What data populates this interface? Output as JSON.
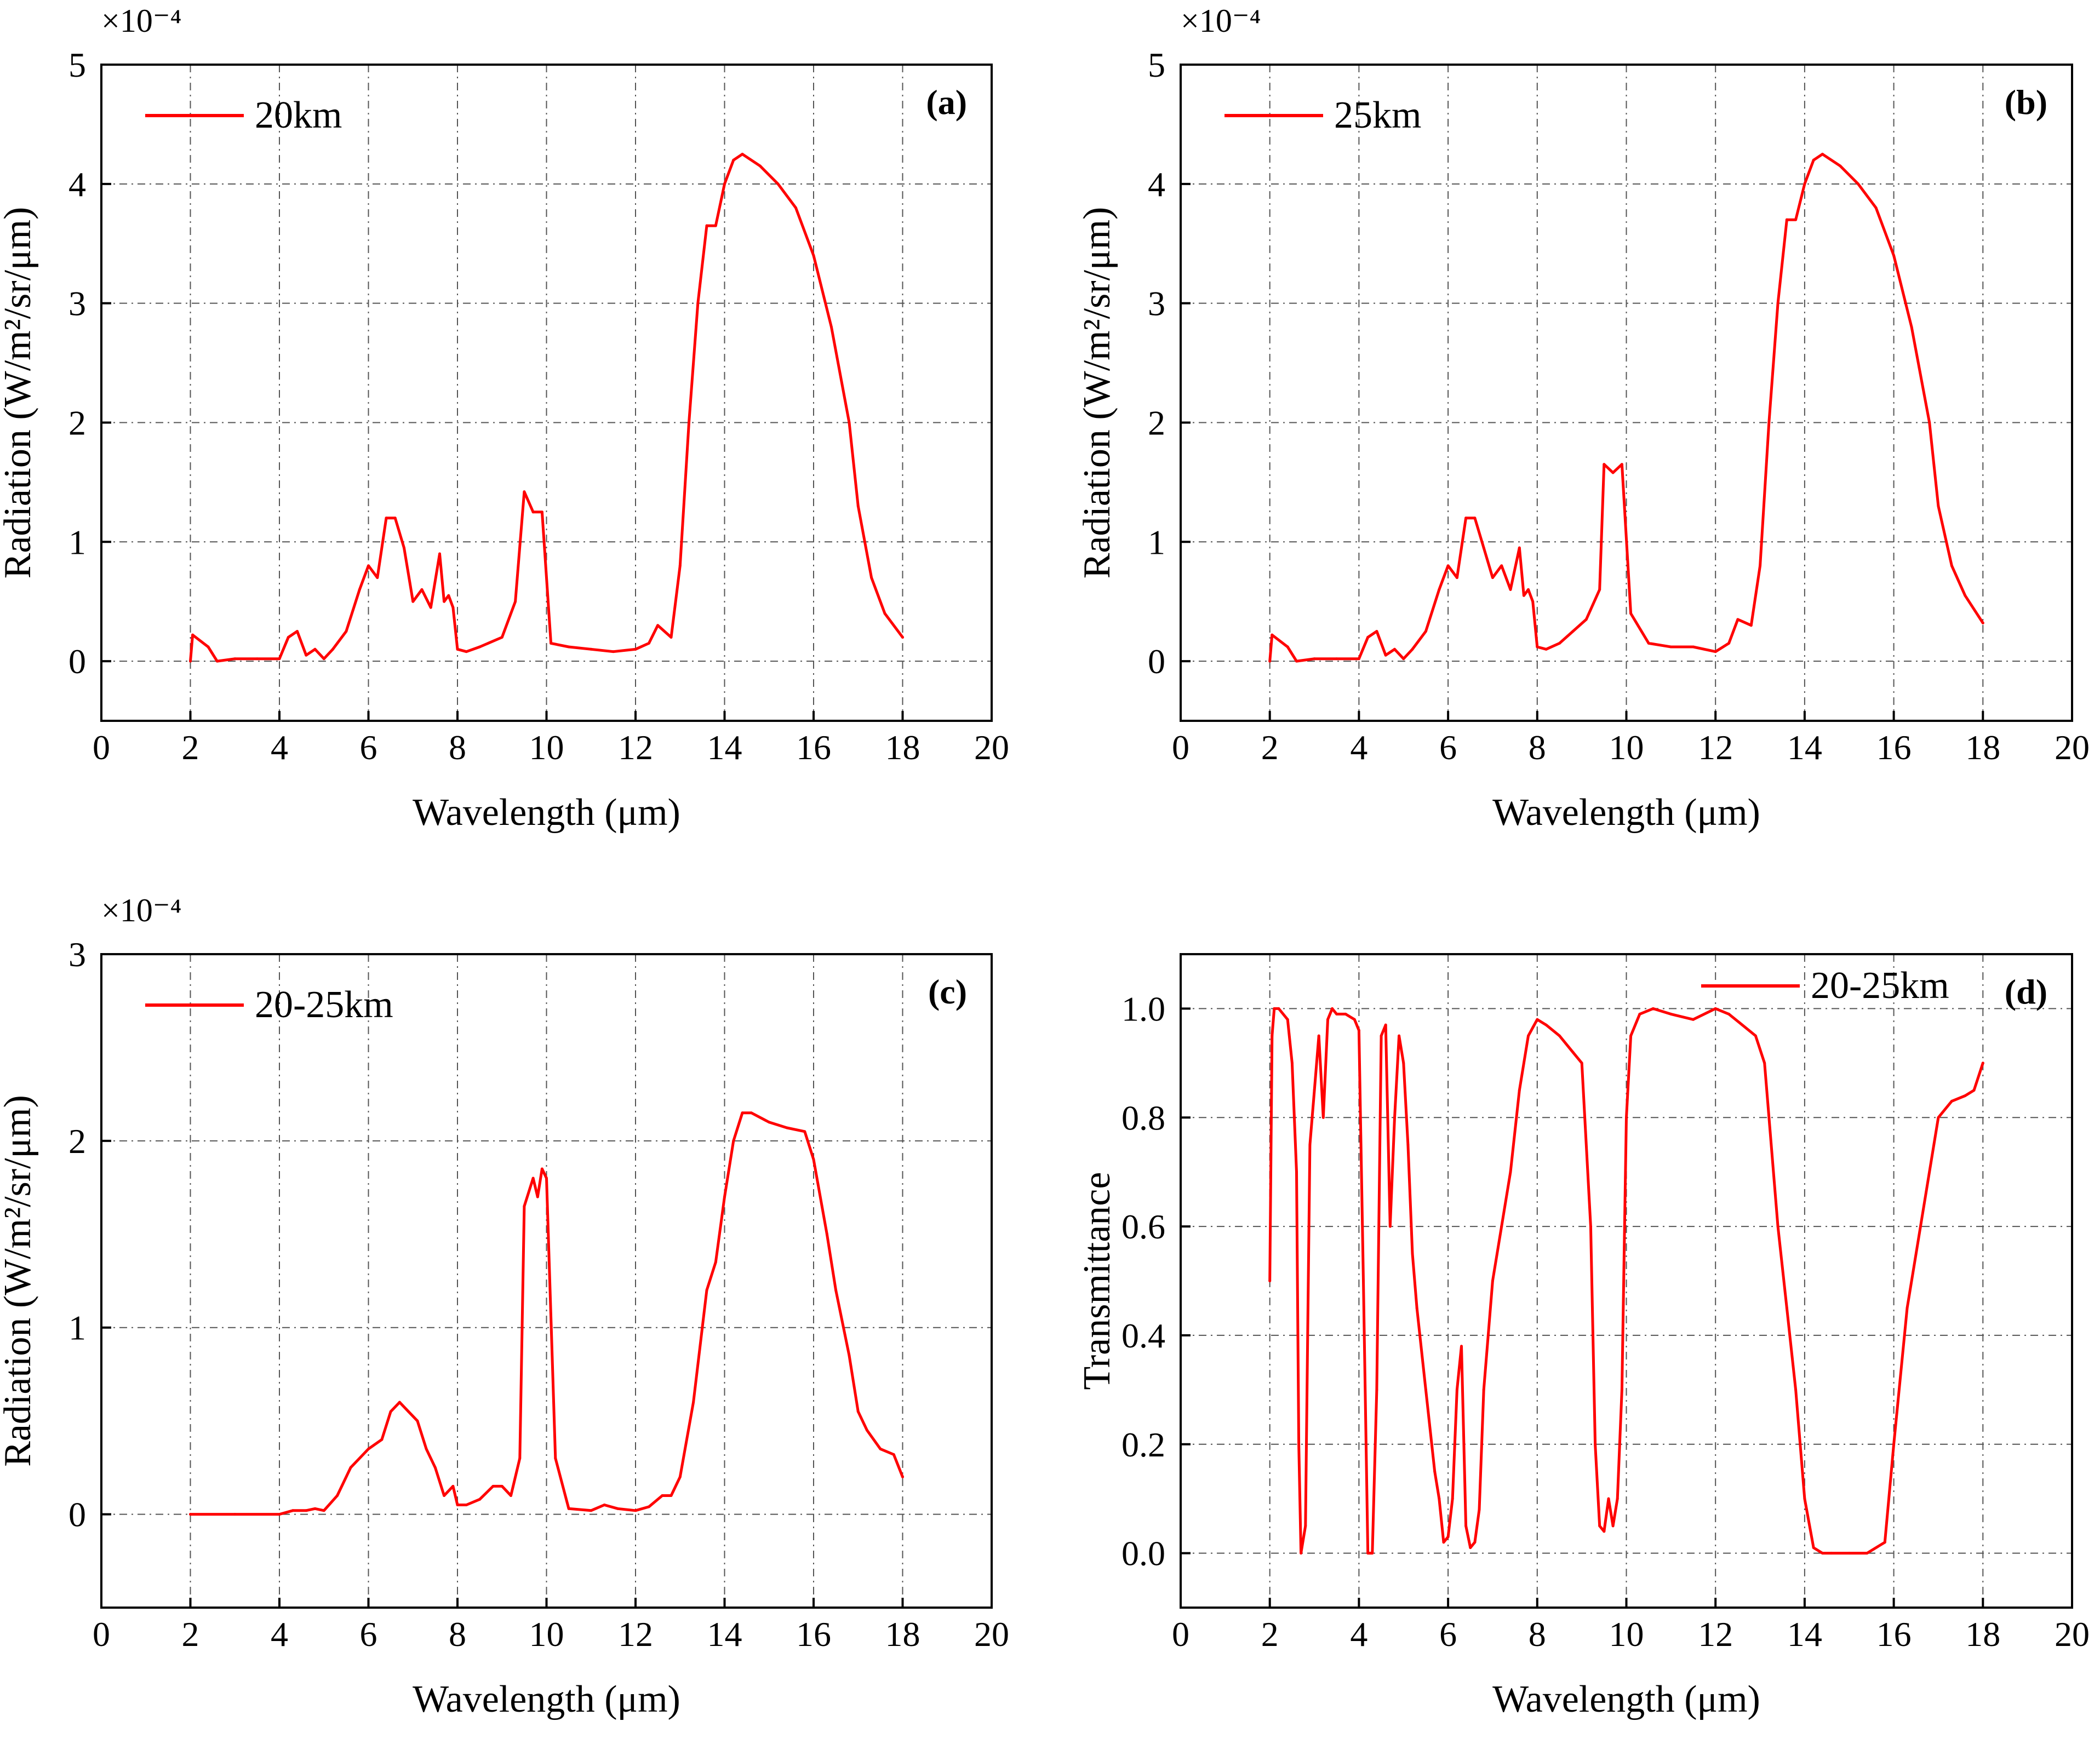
{
  "colors": {
    "series": "#ff0000",
    "grid": "#555555",
    "axis": "#000000"
  },
  "chart_data": [
    {
      "panel": "(a)",
      "type": "line",
      "xlabel": "Wavelength (μm)",
      "ylabel": "Radiation (W/m²/sr/μm)",
      "multiplier": "×10⁻⁴",
      "xlim": [
        0,
        20
      ],
      "ylim": [
        -0.5,
        5
      ],
      "xticks": [
        0,
        2,
        4,
        6,
        8,
        10,
        12,
        14,
        16,
        18,
        20
      ],
      "yticks": [
        0,
        1,
        2,
        3,
        4,
        5
      ],
      "legend": "20km",
      "legend_position": "top-left",
      "series": [
        {
          "name": "20km",
          "x": [
            2.0,
            2.05,
            2.4,
            2.6,
            3.0,
            3.5,
            4.0,
            4.2,
            4.4,
            4.6,
            4.8,
            5.0,
            5.2,
            5.5,
            5.8,
            6.0,
            6.2,
            6.4,
            6.6,
            6.8,
            7.0,
            7.2,
            7.4,
            7.6,
            7.7,
            7.8,
            7.9,
            8.0,
            8.2,
            8.5,
            9.0,
            9.3,
            9.5,
            9.7,
            9.9,
            10.1,
            10.5,
            11.0,
            11.5,
            12.0,
            12.3,
            12.5,
            12.8,
            13.0,
            13.2,
            13.4,
            13.6,
            13.8,
            14.0,
            14.2,
            14.4,
            14.8,
            15.2,
            15.6,
            16.0,
            16.4,
            16.8,
            17.0,
            17.3,
            17.6,
            18.0
          ],
          "y": [
            0.0,
            0.22,
            0.12,
            0.0,
            0.02,
            0.02,
            0.02,
            0.2,
            0.25,
            0.05,
            0.1,
            0.02,
            0.1,
            0.25,
            0.6,
            0.8,
            0.7,
            1.2,
            1.2,
            0.95,
            0.5,
            0.6,
            0.45,
            0.9,
            0.5,
            0.55,
            0.45,
            0.1,
            0.08,
            0.12,
            0.2,
            0.5,
            1.42,
            1.25,
            1.25,
            0.15,
            0.12,
            0.1,
            0.08,
            0.1,
            0.15,
            0.3,
            0.2,
            0.8,
            2.0,
            3.0,
            3.65,
            3.65,
            4.0,
            4.2,
            4.25,
            4.15,
            4.0,
            3.8,
            3.4,
            2.8,
            2.0,
            1.3,
            0.7,
            0.4,
            0.2
          ]
        }
      ]
    },
    {
      "panel": "(b)",
      "type": "line",
      "xlabel": "Wavelength (μm)",
      "ylabel": "Radiation (W/m²/sr/μm)",
      "multiplier": "×10⁻⁴",
      "xlim": [
        0,
        20
      ],
      "ylim": [
        -0.5,
        5
      ],
      "xticks": [
        0,
        2,
        4,
        6,
        8,
        10,
        12,
        14,
        16,
        18,
        20
      ],
      "yticks": [
        0,
        1,
        2,
        3,
        4,
        5
      ],
      "legend": "25km",
      "legend_position": "top-left",
      "series": [
        {
          "name": "25km",
          "x": [
            2.0,
            2.05,
            2.4,
            2.6,
            3.0,
            3.5,
            4.0,
            4.2,
            4.4,
            4.6,
            4.8,
            5.0,
            5.2,
            5.5,
            5.8,
            6.0,
            6.2,
            6.4,
            6.6,
            6.8,
            7.0,
            7.2,
            7.4,
            7.6,
            7.7,
            7.8,
            7.9,
            8.0,
            8.2,
            8.5,
            8.8,
            9.1,
            9.4,
            9.5,
            9.7,
            9.9,
            10.1,
            10.5,
            11.0,
            11.5,
            12.0,
            12.3,
            12.5,
            12.8,
            13.0,
            13.2,
            13.4,
            13.6,
            13.8,
            14.0,
            14.2,
            14.4,
            14.8,
            15.2,
            15.6,
            16.0,
            16.4,
            16.8,
            17.0,
            17.3,
            17.6,
            18.0
          ],
          "y": [
            0.0,
            0.22,
            0.12,
            0.0,
            0.02,
            0.02,
            0.02,
            0.2,
            0.25,
            0.05,
            0.1,
            0.02,
            0.1,
            0.25,
            0.6,
            0.8,
            0.7,
            1.2,
            1.2,
            0.95,
            0.7,
            0.8,
            0.6,
            0.95,
            0.55,
            0.6,
            0.5,
            0.12,
            0.1,
            0.15,
            0.25,
            0.35,
            0.6,
            1.65,
            1.58,
            1.65,
            0.4,
            0.15,
            0.12,
            0.12,
            0.08,
            0.15,
            0.35,
            0.3,
            0.8,
            2.0,
            3.0,
            3.7,
            3.7,
            4.0,
            4.2,
            4.25,
            4.15,
            4.0,
            3.8,
            3.4,
            2.8,
            2.0,
            1.3,
            0.8,
            0.55,
            0.32
          ]
        }
      ]
    },
    {
      "panel": "(c)",
      "type": "line",
      "xlabel": "Wavelength (μm)",
      "ylabel": "Radiation (W/m²/sr/μm)",
      "multiplier": "×10⁻⁴",
      "xlim": [
        0,
        20
      ],
      "ylim": [
        -0.5,
        3
      ],
      "xticks": [
        0,
        2,
        4,
        6,
        8,
        10,
        12,
        14,
        16,
        18,
        20
      ],
      "yticks": [
        0,
        1,
        2,
        3
      ],
      "legend": "20-25km",
      "legend_position": "top-left",
      "series": [
        {
          "name": "20-25km",
          "x": [
            2.0,
            3.0,
            4.0,
            4.3,
            4.6,
            4.8,
            5.0,
            5.3,
            5.6,
            6.0,
            6.3,
            6.5,
            6.7,
            6.9,
            7.1,
            7.3,
            7.5,
            7.7,
            7.9,
            8.0,
            8.2,
            8.5,
            8.8,
            9.0,
            9.2,
            9.4,
            9.5,
            9.7,
            9.8,
            9.9,
            10.0,
            10.2,
            10.5,
            11.0,
            11.3,
            11.6,
            12.0,
            12.3,
            12.6,
            12.8,
            13.0,
            13.3,
            13.6,
            13.8,
            14.0,
            14.2,
            14.4,
            14.6,
            15.0,
            15.4,
            15.8,
            16.0,
            16.3,
            16.5,
            16.8,
            17.0,
            17.2,
            17.5,
            17.8,
            18.0
          ],
          "y": [
            0.0,
            0.0,
            0.0,
            0.02,
            0.02,
            0.03,
            0.02,
            0.1,
            0.25,
            0.35,
            0.4,
            0.55,
            0.6,
            0.55,
            0.5,
            0.35,
            0.25,
            0.1,
            0.15,
            0.05,
            0.05,
            0.08,
            0.15,
            0.15,
            0.1,
            0.3,
            1.65,
            1.8,
            1.7,
            1.85,
            1.8,
            0.3,
            0.03,
            0.02,
            0.05,
            0.03,
            0.02,
            0.04,
            0.1,
            0.1,
            0.2,
            0.6,
            1.2,
            1.35,
            1.7,
            2.0,
            2.15,
            2.15,
            2.1,
            2.07,
            2.05,
            1.9,
            1.5,
            1.2,
            0.85,
            0.55,
            0.45,
            0.35,
            0.32,
            0.2
          ]
        }
      ]
    },
    {
      "panel": "(d)",
      "type": "line",
      "xlabel": "Wavelength (μm)",
      "ylabel": "Transmittance",
      "multiplier": "",
      "xlim": [
        0,
        20
      ],
      "ylim": [
        -0.1,
        1.1
      ],
      "xticks": [
        0,
        2,
        4,
        6,
        8,
        10,
        12,
        14,
        16,
        18,
        20
      ],
      "yticks": [
        0.0,
        0.2,
        0.4,
        0.6,
        0.8,
        1.0
      ],
      "ytick_labels": [
        "0.0",
        "0.2",
        "0.4",
        "0.6",
        "0.8",
        "1.0"
      ],
      "legend": "20-25km",
      "legend_position": "top-right",
      "series": [
        {
          "name": "20-25km",
          "x": [
            2.0,
            2.05,
            2.1,
            2.2,
            2.4,
            2.5,
            2.6,
            2.65,
            2.7,
            2.8,
            2.85,
            2.9,
            3.0,
            3.1,
            3.2,
            3.3,
            3.4,
            3.5,
            3.7,
            3.9,
            4.0,
            4.1,
            4.2,
            4.25,
            4.3,
            4.4,
            4.5,
            4.6,
            4.7,
            4.8,
            4.9,
            5.0,
            5.1,
            5.2,
            5.3,
            5.5,
            5.7,
            5.8,
            5.9,
            6.0,
            6.1,
            6.2,
            6.3,
            6.4,
            6.5,
            6.6,
            6.7,
            6.8,
            6.9,
            7.0,
            7.2,
            7.4,
            7.6,
            7.8,
            8.0,
            8.2,
            8.5,
            8.8,
            9.0,
            9.2,
            9.3,
            9.4,
            9.5,
            9.6,
            9.7,
            9.8,
            9.9,
            10.0,
            10.1,
            10.3,
            10.6,
            11.0,
            11.5,
            12.0,
            12.3,
            12.6,
            12.9,
            13.1,
            13.4,
            13.6,
            13.8,
            14.0,
            14.2,
            14.4,
            14.6,
            15.0,
            15.4,
            15.8,
            16.0,
            16.3,
            16.6,
            17.0,
            17.3,
            17.6,
            17.8,
            18.0
          ],
          "y": [
            0.5,
            0.95,
            1.0,
            1.0,
            0.98,
            0.9,
            0.7,
            0.2,
            0.0,
            0.05,
            0.4,
            0.75,
            0.85,
            0.95,
            0.8,
            0.98,
            1.0,
            0.99,
            0.99,
            0.98,
            0.96,
            0.5,
            0.0,
            0.0,
            0.0,
            0.3,
            0.95,
            0.97,
            0.6,
            0.8,
            0.95,
            0.9,
            0.75,
            0.55,
            0.45,
            0.3,
            0.15,
            0.1,
            0.02,
            0.03,
            0.1,
            0.3,
            0.38,
            0.05,
            0.01,
            0.02,
            0.08,
            0.3,
            0.4,
            0.5,
            0.6,
            0.7,
            0.85,
            0.95,
            0.98,
            0.97,
            0.95,
            0.92,
            0.9,
            0.6,
            0.2,
            0.05,
            0.04,
            0.1,
            0.05,
            0.1,
            0.3,
            0.8,
            0.95,
            0.99,
            1.0,
            0.99,
            0.98,
            1.0,
            0.99,
            0.97,
            0.95,
            0.9,
            0.6,
            0.45,
            0.3,
            0.1,
            0.01,
            0.0,
            0.0,
            0.0,
            0.0,
            0.02,
            0.2,
            0.45,
            0.6,
            0.8,
            0.83,
            0.84,
            0.85,
            0.9
          ]
        }
      ]
    }
  ]
}
